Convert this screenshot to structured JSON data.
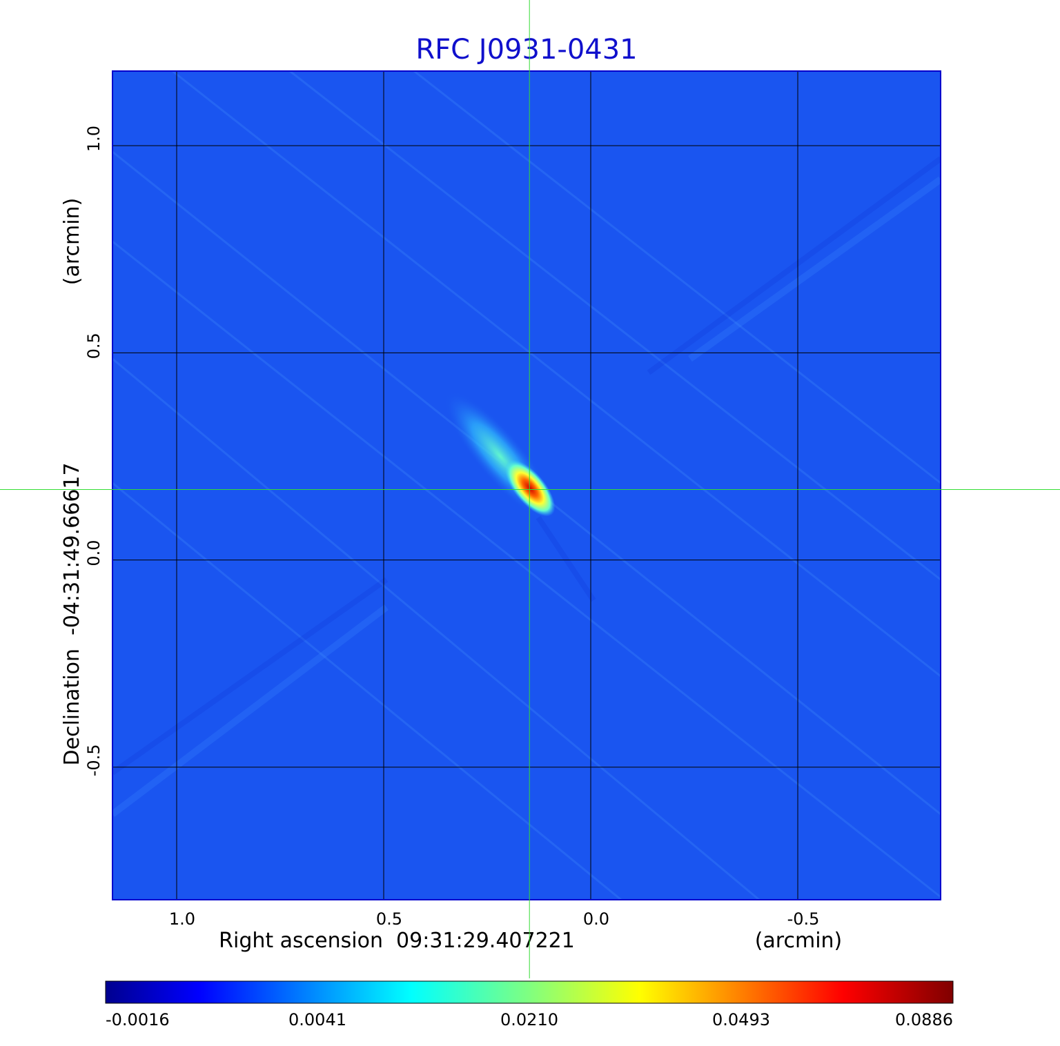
{
  "chart_data": {
    "type": "heatmap",
    "title": "RFC J0931-0431",
    "xlabel": "Right ascension  09:31:29.407221",
    "xunit": "(arcmin)",
    "ylabel": "Declination  -04:31:49.66617",
    "yunit": "(arcmin)",
    "x_ticks": [
      "1.0",
      "0.5",
      "0.0",
      "-0.5"
    ],
    "x_tick_values": [
      1.0,
      0.5,
      0.0,
      -0.5
    ],
    "y_ticks": [
      "1.0",
      "0.5",
      "0.0",
      "-0.5"
    ],
    "y_tick_values": [
      1.0,
      0.5,
      0.0,
      -0.5
    ],
    "xlim": [
      1.155,
      -0.845
    ],
    "ylim": [
      -0.82,
      1.18
    ],
    "grid": true,
    "crosshair": {
      "x": 0.148,
      "y": 0.17
    },
    "peak": {
      "x": 0.155,
      "y": 0.18,
      "value": 0.0886
    },
    "colorbar": {
      "ticks": [
        "-0.0016",
        "0.0041",
        "0.0210",
        "0.0493",
        "0.0886"
      ],
      "colormap": "jet",
      "min": -0.0016,
      "max": 0.0886
    },
    "colors": {
      "background": "#1a55f0",
      "grid": "#000000",
      "crosshair": "#33dd33",
      "title": "#1010cc"
    }
  }
}
